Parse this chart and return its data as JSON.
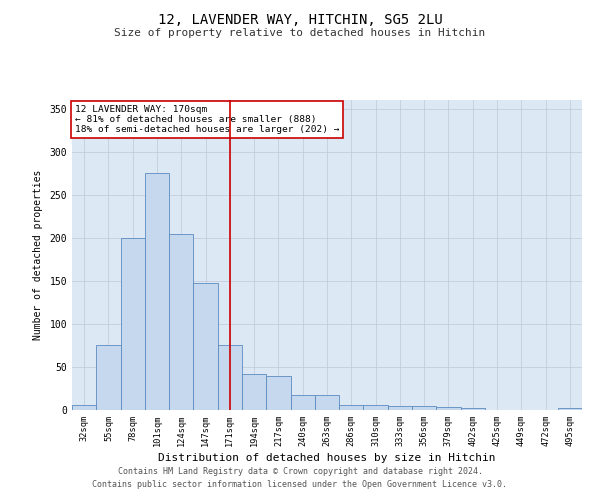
{
  "title_line1": "12, LAVENDER WAY, HITCHIN, SG5 2LU",
  "title_line2": "Size of property relative to detached houses in Hitchin",
  "xlabel": "Distribution of detached houses by size in Hitchin",
  "ylabel": "Number of detached properties",
  "footer1": "Contains HM Land Registry data © Crown copyright and database right 2024.",
  "footer2": "Contains public sector information licensed under the Open Government Licence v3.0.",
  "annotation_line1": "12 LAVENDER WAY: 170sqm",
  "annotation_line2": "← 81% of detached houses are smaller (888)",
  "annotation_line3": "18% of semi-detached houses are larger (202) →",
  "categories": [
    "32sqm",
    "55sqm",
    "78sqm",
    "101sqm",
    "124sqm",
    "147sqm",
    "171sqm",
    "194sqm",
    "217sqm",
    "240sqm",
    "263sqm",
    "286sqm",
    "310sqm",
    "333sqm",
    "356sqm",
    "379sqm",
    "402sqm",
    "425sqm",
    "449sqm",
    "472sqm",
    "495sqm"
  ],
  "values": [
    6,
    75,
    200,
    275,
    204,
    147,
    75,
    42,
    39,
    18,
    18,
    6,
    6,
    5,
    5,
    3,
    2,
    0,
    0,
    0,
    2
  ],
  "bar_color": "#c5d8ed",
  "bar_edge_color": "#5a8bbf",
  "vline_color": "#cc0000",
  "vline_x_index": 6,
  "box_color": "#cc0000",
  "bg_color": "#dde8f5",
  "ylim": [
    0,
    360
  ],
  "yticks": [
    0,
    50,
    100,
    150,
    200,
    250,
    300,
    350
  ]
}
